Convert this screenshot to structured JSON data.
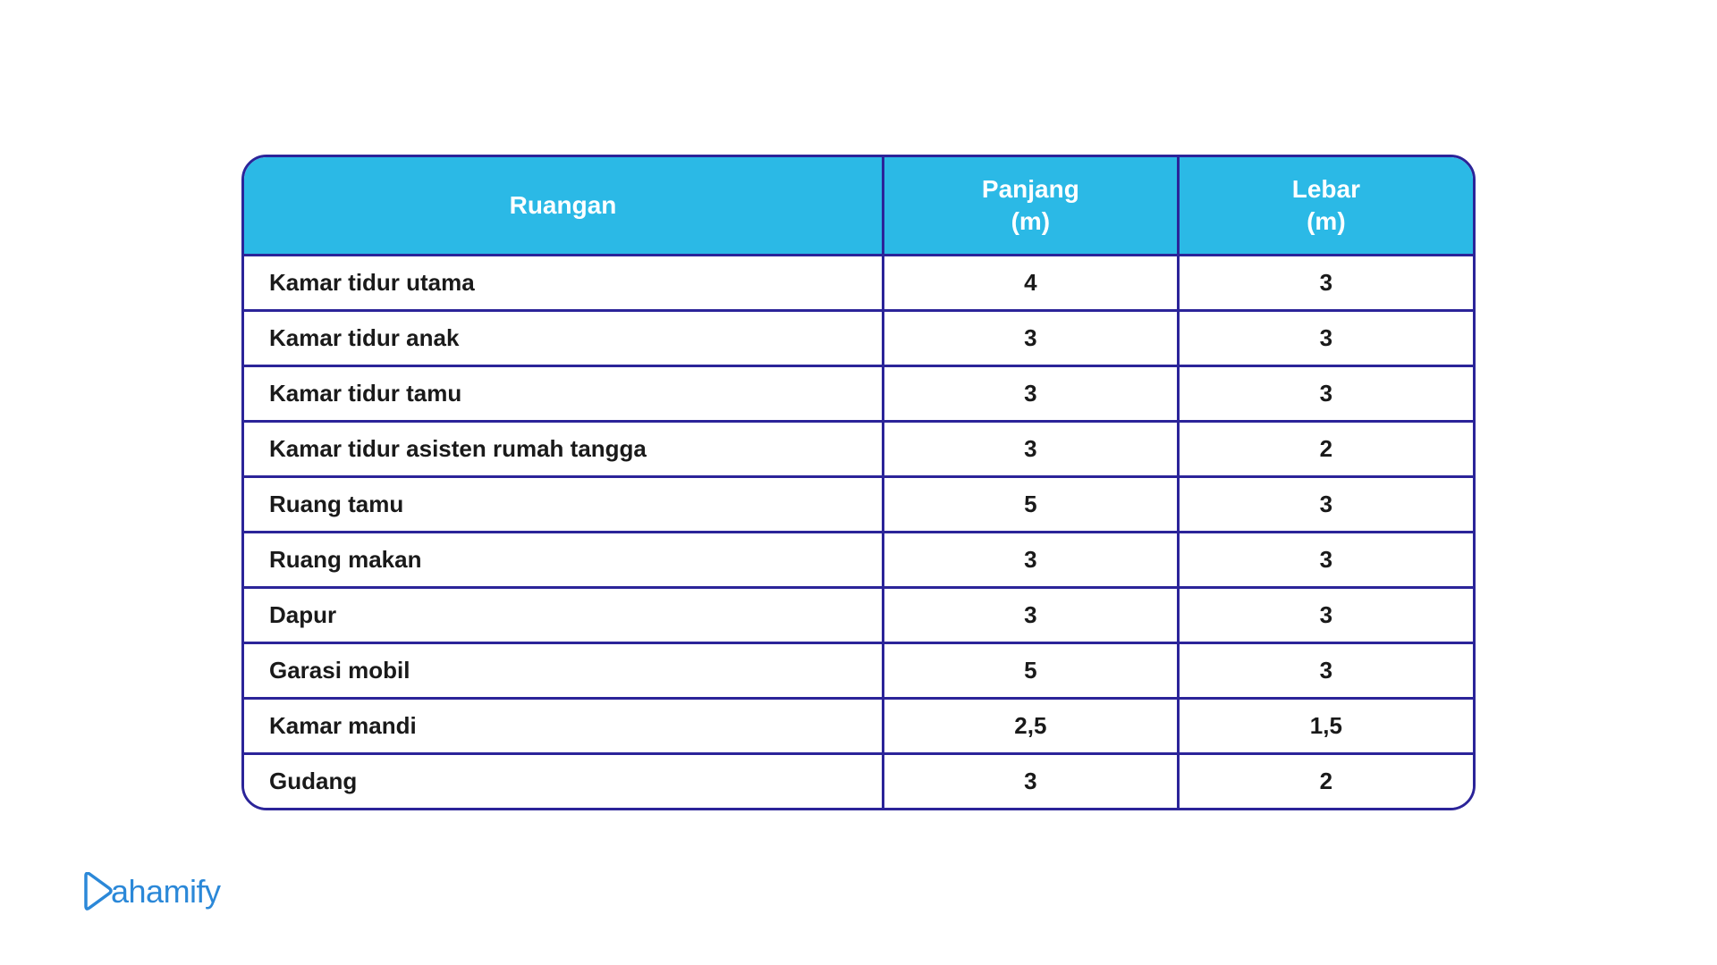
{
  "table": {
    "type": "table",
    "header_bg": "#2bb9e6",
    "header_text_color": "#ffffff",
    "border_color": "#2b2499",
    "border_width": 3,
    "border_radius": 28,
    "row_bg": "#ffffff",
    "cell_text_color": "#1a1a1a",
    "header_fontsize": 28,
    "cell_fontsize": 26,
    "font_weight": 700,
    "columns": [
      {
        "label": "Ruangan",
        "width_pct": 52,
        "align": "left"
      },
      {
        "label": "Panjang\n(m)",
        "width_pct": 24,
        "align": "center"
      },
      {
        "label": "Lebar\n(m)",
        "width_pct": 24,
        "align": "center"
      }
    ],
    "rows": [
      [
        "Kamar tidur utama",
        "4",
        "3"
      ],
      [
        "Kamar tidur anak",
        "3",
        "3"
      ],
      [
        "Kamar tidur tamu",
        "3",
        "3"
      ],
      [
        "Kamar tidur asisten rumah tangga",
        "3",
        "2"
      ],
      [
        "Ruang tamu",
        "5",
        "3"
      ],
      [
        "Ruang makan",
        "3",
        "3"
      ],
      [
        "Dapur",
        "3",
        "3"
      ],
      [
        "Garasi mobil",
        "5",
        "3"
      ],
      [
        "Kamar mandi",
        "2,5",
        "1,5"
      ],
      [
        "Gudang",
        "3",
        "2"
      ]
    ]
  },
  "logo": {
    "text": "ahamify",
    "brand_color": "#2b88d8"
  }
}
